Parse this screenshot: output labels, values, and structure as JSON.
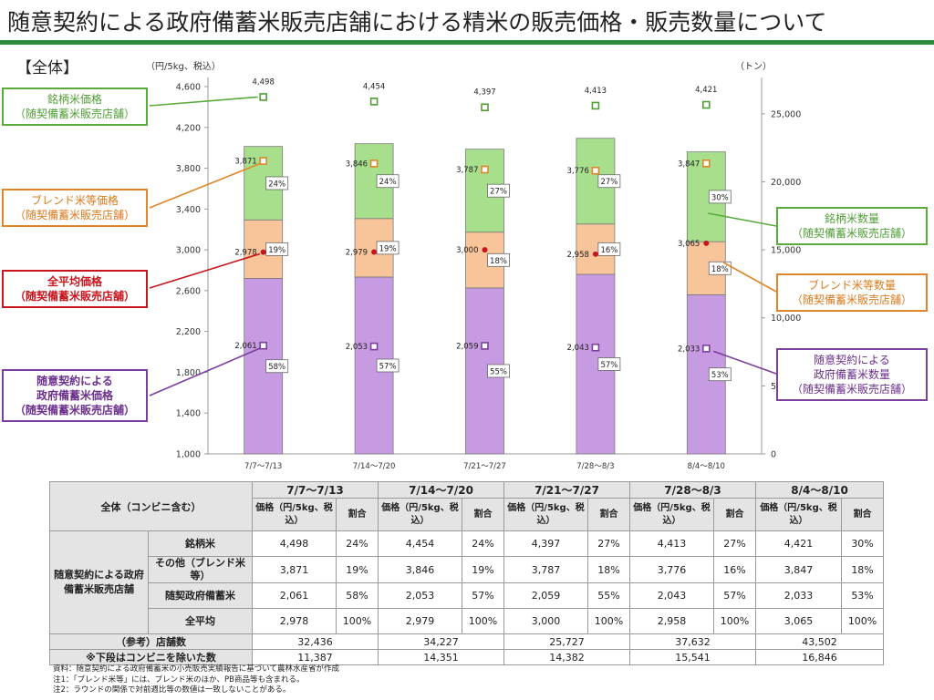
{
  "title": "随意契約による政府備蓄米販売店舗における精米の販売価格・販売数量について",
  "chart_data": {
    "type": "bar",
    "section_label": "【全体】",
    "y_left_unit": "（円/5kg、税込）",
    "y_right_unit": "（トン）",
    "y_left_range": [
      1000,
      4600
    ],
    "y_left_ticks": [
      "1,000",
      "1,400",
      "1,800",
      "2,200",
      "2,600",
      "3,000",
      "3,400",
      "3,800",
      "4,200",
      "4,600"
    ],
    "y_left_tick_values": [
      1000,
      1400,
      1800,
      2200,
      2600,
      3000,
      3400,
      3800,
      4200,
      4600
    ],
    "y_right_range": [
      0,
      27000
    ],
    "y_right_ticks": [
      "0",
      "5,000",
      "10,000",
      "15,000",
      "20,000",
      "25,000"
    ],
    "y_right_tick_values": [
      0,
      5000,
      10000,
      15000,
      20000,
      25000
    ],
    "categories": [
      "7/7～7/13",
      "7/14～7/20",
      "7/21～7/27",
      "7/28～8/3",
      "8/4～8/10"
    ],
    "bar_series": [
      {
        "name": "随意契約による政府備蓄米数量",
        "color": "#c79be2",
        "values": [
          12900,
          13000,
          12200,
          13200,
          11700
        ],
        "share_labels": [
          "58%",
          "57%",
          "55%",
          "57%",
          "53%"
        ]
      },
      {
        "name": "ブレンド米等数量",
        "color": "#f8c49a",
        "values": [
          4300,
          4300,
          4100,
          3700,
          3900
        ],
        "share_labels": [
          "19%",
          "19%",
          "18%",
          "16%",
          "18%"
        ]
      },
      {
        "name": "銘柄米数量",
        "color": "#a7df8d",
        "values": [
          5400,
          5500,
          6100,
          6300,
          6600
        ],
        "share_labels": [
          "24%",
          "24%",
          "27%",
          "27%",
          "30%"
        ]
      }
    ],
    "price_series": [
      {
        "name": "銘柄米価格",
        "marker": "square",
        "color": "#4f9e35",
        "values": [
          4498,
          4454,
          4397,
          4413,
          4421
        ],
        "labels": [
          "4,498",
          "4,454",
          "4,397",
          "4,413",
          "4,421"
        ]
      },
      {
        "name": "ブレンド米等価格",
        "marker": "square",
        "color": "#e0862a",
        "values": [
          3871,
          3846,
          3787,
          3776,
          3847
        ],
        "labels": [
          "3,871",
          "3,846",
          "3,787",
          "3,776",
          "3,847"
        ]
      },
      {
        "name": "全平均価格",
        "marker": "dot",
        "color": "#c8141c",
        "values": [
          2978,
          2979,
          3000,
          2958,
          3065
        ],
        "labels": [
          "2,978",
          "2,979",
          "3,000",
          "2,958",
          "3,065"
        ]
      },
      {
        "name": "随意契約による政府備蓄米価格",
        "marker": "square",
        "color": "#7b3f9e",
        "values": [
          2061,
          2053,
          2059,
          2043,
          2033
        ],
        "labels": [
          "2,061",
          "2,053",
          "2,059",
          "2,043",
          "2,033"
        ]
      }
    ],
    "callouts": {
      "brand_price": [
        "銘柄米価格",
        "（随契備蓄米販売店舗）"
      ],
      "blend_price": [
        "ブレンド米等価格",
        "（随契備蓄米販売店舗）"
      ],
      "avg_price": [
        "全平均価格",
        "（随契備蓄米販売店舗）"
      ],
      "gov_price": [
        "随意契約による",
        "政府備蓄米価格",
        "（随契備蓄米販売店舗）"
      ],
      "brand_qty": [
        "銘柄米数量",
        "（随契備蓄米販売店舗）"
      ],
      "blend_qty": [
        "ブレンド米等数量",
        "（随契備蓄米販売店舗）"
      ],
      "gov_qty": [
        "随意契約による",
        "政府備蓄米数量",
        "（随契備蓄米販売店舗）"
      ]
    }
  },
  "table": {
    "corner_label": "全体（コンビニ含む）",
    "periods": [
      "7/7～7/13",
      "7/14～7/20",
      "7/21～7/27",
      "7/28～8/3",
      "8/4～8/10"
    ],
    "price_head": "価格（円/5kg、税込）",
    "share_head": "割合",
    "group_label": "随意契約による政府備蓄米販売店舗",
    "rows": [
      {
        "label": "銘柄米",
        "cells": [
          [
            "4,498",
            "24%"
          ],
          [
            "4,454",
            "24%"
          ],
          [
            "4,397",
            "27%"
          ],
          [
            "4,413",
            "27%"
          ],
          [
            "4,421",
            "30%"
          ]
        ]
      },
      {
        "label": "その他（ブレンド米等）",
        "cells": [
          [
            "3,871",
            "19%"
          ],
          [
            "3,846",
            "19%"
          ],
          [
            "3,787",
            "18%"
          ],
          [
            "3,776",
            "16%"
          ],
          [
            "3,847",
            "18%"
          ]
        ]
      },
      {
        "label": "随契政府備蓄米",
        "cells": [
          [
            "2,061",
            "58%"
          ],
          [
            "2,053",
            "57%"
          ],
          [
            "2,059",
            "55%"
          ],
          [
            "2,043",
            "57%"
          ],
          [
            "2,033",
            "53%"
          ]
        ]
      },
      {
        "label": "全平均",
        "cells": [
          [
            "2,978",
            "100%"
          ],
          [
            "2,979",
            "100%"
          ],
          [
            "3,000",
            "100%"
          ],
          [
            "2,958",
            "100%"
          ],
          [
            "3,065",
            "100%"
          ]
        ]
      }
    ],
    "store_rows": [
      {
        "label": "（参考）店舗数",
        "values": [
          "32,436",
          "34,227",
          "25,727",
          "37,632",
          "43,502"
        ]
      },
      {
        "label": "※下段はコンビニを除いた数",
        "values": [
          "11,387",
          "14,351",
          "14,382",
          "15,541",
          "16,846"
        ]
      }
    ]
  },
  "notes": [
    "資料：随意契約による政府備蓄米の小売販売実績報告に基づいて農林水産省が作成",
    "注1：「ブレンド米等」には、ブレンド米のほか、PB商品等も含まれる。",
    "注2：ラウンドの関係で対前週比等の数値は一致しないことがある。"
  ]
}
